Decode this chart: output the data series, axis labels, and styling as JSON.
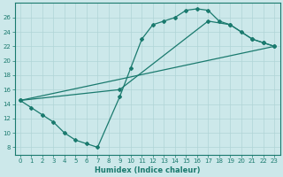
{
  "line1_x": [
    0,
    1,
    2,
    3,
    4,
    5,
    6,
    7,
    9,
    10,
    11,
    12,
    13,
    14,
    15,
    16,
    17,
    18,
    19,
    20,
    21,
    22,
    23
  ],
  "line1_y": [
    14.5,
    13.5,
    12.5,
    11.5,
    10.0,
    9.0,
    8.5,
    8.0,
    15.0,
    19.0,
    23.0,
    25.0,
    25.5,
    26.0,
    27.0,
    27.2,
    27.0,
    25.5,
    25.0,
    24.0,
    23.0,
    22.5,
    22.0
  ],
  "line2_x": [
    0,
    9,
    17,
    19,
    21,
    22,
    23
  ],
  "line2_y": [
    14.5,
    16.0,
    25.5,
    25.0,
    23.0,
    22.5,
    22.0
  ],
  "line3_x": [
    0,
    23
  ],
  "line3_y": [
    14.5,
    22.0
  ],
  "color": "#1a7a6e",
  "bg_color": "#cce8ea",
  "grid_color": "#b0d4d6",
  "xlabel": "Humidex (Indice chaleur)",
  "xlim": [
    -0.5,
    23.5
  ],
  "ylim": [
    7,
    28
  ],
  "xticks": [
    0,
    1,
    2,
    3,
    4,
    5,
    6,
    7,
    8,
    9,
    10,
    11,
    12,
    13,
    14,
    15,
    16,
    17,
    18,
    19,
    20,
    21,
    22,
    23
  ],
  "yticks": [
    8,
    10,
    12,
    14,
    16,
    18,
    20,
    22,
    24,
    26
  ],
  "marker": "D",
  "markersize": 2.0,
  "linewidth": 0.9,
  "tick_fontsize": 5.0,
  "xlabel_fontsize": 6.0
}
